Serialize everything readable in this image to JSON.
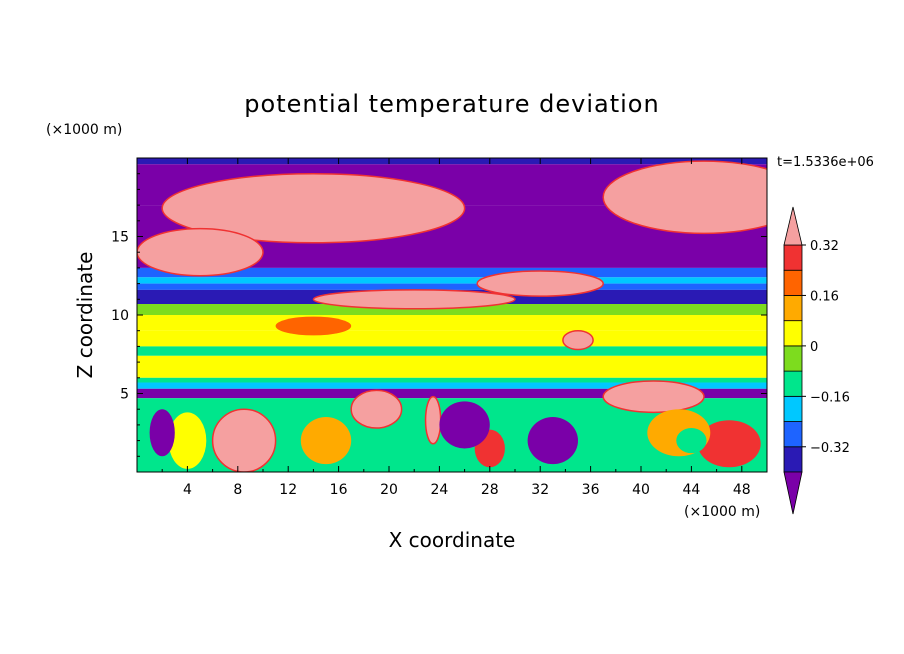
{
  "chart_data": {
    "type": "heatmap",
    "title": "potential temperature deviation",
    "xlabel": "X coordinate",
    "ylabel": "Z coordinate",
    "x_unit": "(×1000 m)",
    "y_unit": "(×1000 m)",
    "time_label": "t=1.5336e+06",
    "xlim": [
      0,
      50
    ],
    "ylim": [
      0,
      20
    ],
    "x_ticks": [
      4,
      8,
      12,
      16,
      20,
      24,
      28,
      32,
      36,
      40,
      44,
      48
    ],
    "y_ticks": [
      5,
      10,
      15
    ],
    "colorbar": {
      "levels": [
        -0.4,
        -0.32,
        -0.24,
        -0.16,
        -0.08,
        0,
        0.08,
        0.16,
        0.24,
        0.32,
        0.4
      ],
      "labeled_ticks": [
        "0.32",
        "0.16",
        "0",
        "−0.16",
        "−0.32"
      ],
      "labeled_values": [
        0.32,
        0.16,
        0,
        -0.16,
        -0.32
      ],
      "colors": [
        "#7a00a8",
        "#2a1ab4",
        "#1e64ff",
        "#00c8ff",
        "#00e68c",
        "#7ddc1e",
        "#ffff00",
        "#ffaa00",
        "#ff6400",
        "#f03232",
        "#f5a0a0"
      ]
    },
    "bands": [
      {
        "z": [
          19.6,
          20.0
        ],
        "value": -0.36
      },
      {
        "z": [
          17.0,
          19.6
        ],
        "value": -0.44
      },
      {
        "z": [
          13.0,
          17.0
        ],
        "value": -0.44
      },
      {
        "z": [
          12.4,
          13.0
        ],
        "value": -0.28
      },
      {
        "z": [
          12.0,
          12.4
        ],
        "value": -0.18
      },
      {
        "z": [
          11.6,
          12.0
        ],
        "value": -0.28
      },
      {
        "z": [
          10.7,
          11.6
        ],
        "value": -0.36
      },
      {
        "z": [
          10.0,
          10.7
        ],
        "value": -0.02
      },
      {
        "z": [
          9.0,
          10.0
        ],
        "value": 0.04
      },
      {
        "z": [
          8.0,
          9.0
        ],
        "value": 0.02
      },
      {
        "z": [
          7.4,
          8.0
        ],
        "value": -0.12
      },
      {
        "z": [
          6.0,
          7.4
        ],
        "value": 0.04
      },
      {
        "z": [
          5.7,
          6.0
        ],
        "value": -0.12
      },
      {
        "z": [
          5.3,
          5.7
        ],
        "value": -0.22
      },
      {
        "z": [
          4.7,
          5.3
        ],
        "value": -0.44
      },
      {
        "z": [
          0.0,
          4.7
        ],
        "value": -0.1
      }
    ],
    "blobs": [
      {
        "x": 14,
        "z": 16.8,
        "rx": 12,
        "rz": 2.2,
        "value": 0.44
      },
      {
        "x": 5,
        "z": 14.0,
        "rx": 5,
        "rz": 1.5,
        "value": 0.44
      },
      {
        "x": 45,
        "z": 17.5,
        "rx": 8,
        "rz": 2.3,
        "value": 0.44
      },
      {
        "x": 22,
        "z": 11.0,
        "rx": 8,
        "rz": 0.6,
        "value": 0.44
      },
      {
        "x": 32,
        "z": 12.0,
        "rx": 5,
        "rz": 0.8,
        "value": 0.44
      },
      {
        "x": 14,
        "z": 9.3,
        "rx": 3,
        "rz": 0.6,
        "value": 0.2
      },
      {
        "x": 35,
        "z": 8.4,
        "rx": 1.2,
        "rz": 0.6,
        "value": 0.44
      },
      {
        "x": 41,
        "z": 4.8,
        "rx": 4,
        "rz": 1.0,
        "value": 0.44
      },
      {
        "x": 8.5,
        "z": 2.0,
        "rx": 2.5,
        "rz": 2.0,
        "value": 0.44
      },
      {
        "x": 19,
        "z": 4.0,
        "rx": 2,
        "rz": 1.2,
        "value": 0.44
      },
      {
        "x": 23.5,
        "z": 3.3,
        "rx": 0.6,
        "rz": 1.5,
        "value": 0.44
      },
      {
        "x": 28,
        "z": 1.5,
        "rx": 1.2,
        "rz": 1.2,
        "value": 0.28
      },
      {
        "x": 47,
        "z": 1.8,
        "rx": 2.5,
        "rz": 1.5,
        "value": 0.3
      },
      {
        "x": 43,
        "z": 2.5,
        "rx": 2.5,
        "rz": 1.5,
        "value": 0.14
      },
      {
        "x": 15,
        "z": 2.0,
        "rx": 2,
        "rz": 1.5,
        "value": 0.12
      },
      {
        "x": 4,
        "z": 2.0,
        "rx": 1.5,
        "rz": 1.8,
        "value": 0.04
      },
      {
        "x": 33,
        "z": 2.0,
        "rx": 2,
        "rz": 1.5,
        "value": -0.44
      },
      {
        "x": 26,
        "z": 3.0,
        "rx": 2,
        "rz": 1.5,
        "value": -0.44
      },
      {
        "x": 44,
        "z": 2.0,
        "rx": 1.2,
        "rz": 0.8,
        "value": -0.14
      },
      {
        "x": 2,
        "z": 2.5,
        "rx": 1,
        "rz": 1.5,
        "value": -0.44
      }
    ]
  }
}
